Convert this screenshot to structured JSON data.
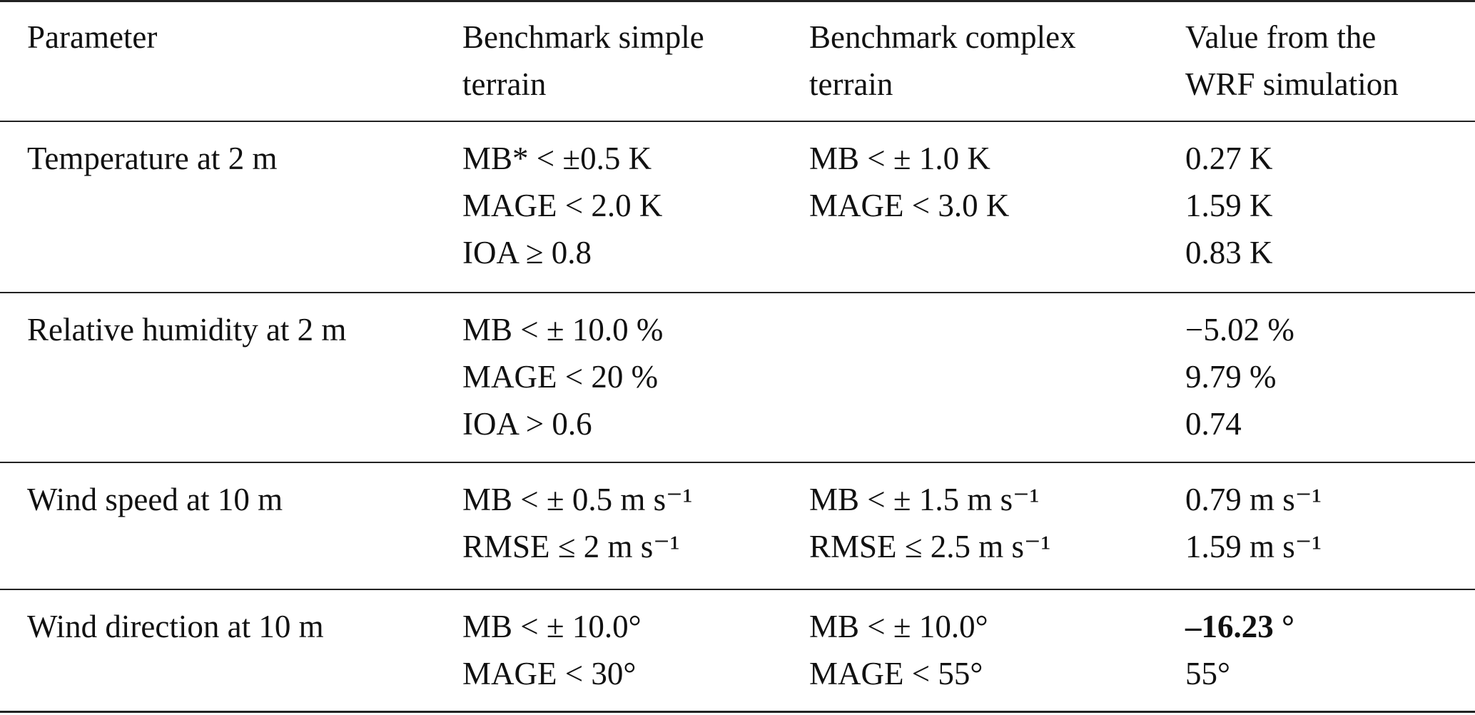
{
  "table": {
    "headers": [
      [
        "Parameter"
      ],
      [
        "Benchmark simple",
        "terrain"
      ],
      [
        "Benchmark complex",
        "terrain"
      ],
      [
        "Value from the",
        "WRF simulation"
      ]
    ],
    "rows": [
      {
        "cells": [
          [
            "Temperature at 2 m"
          ],
          [
            "MB* < ±0.5 K",
            "MAGE < 2.0 K",
            "IOA ≥ 0.8"
          ],
          [
            "MB < ± 1.0 K",
            "MAGE < 3.0 K"
          ],
          [
            "0.27 K",
            "1.59 K",
            "0.83 K"
          ]
        ]
      },
      {
        "cells": [
          [
            "Relative humidity at 2 m"
          ],
          [
            "MB < ± 10.0 %",
            "MAGE < 20 %",
            "IOA > 0.6"
          ],
          [],
          [
            "−5.02 %",
            "9.79 %",
            "0.74"
          ]
        ]
      },
      {
        "cells": [
          [
            "Wind speed at 10 m"
          ],
          [
            "MB < ± 0.5 m s⁻¹",
            "RMSE ≤ 2 m s⁻¹"
          ],
          [
            "MB < ± 1.5 m s⁻¹",
            "RMSE ≤ 2.5 m s⁻¹"
          ],
          [
            "0.79 m s⁻¹",
            "1.59 m s⁻¹"
          ]
        ]
      },
      {
        "cells": [
          [
            "Wind direction at 10 m"
          ],
          [
            "MB < ± 10.0°",
            "MAGE < 30°"
          ],
          [
            "MB < ± 10.0°",
            "MAGE < 55°"
          ],
          [
            "–16.23 °",
            "55°"
          ]
        ],
        "bold_lines": [
          "3.0"
        ]
      }
    ]
  }
}
